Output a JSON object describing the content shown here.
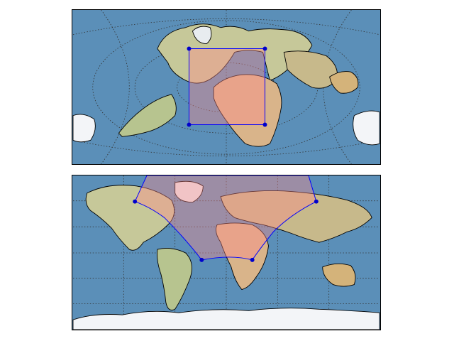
{
  "figure": {
    "panels": [
      {
        "id": "rotated-pole-map",
        "projection": "rotated-pole",
        "features": [
          "stock-image-background",
          "coastlines",
          "graticule-dotted",
          "projected-box-polygon",
          "corner-markers"
        ],
        "polygon": {
          "face_color": "#ff8a8a",
          "edge_color": "#0000ff",
          "alpha": 0.4
        }
      },
      {
        "id": "plate-carree-map",
        "projection": "plate-carree",
        "features": [
          "stock-image-background",
          "coastlines",
          "graticule-dotted",
          "geodesic-polygon",
          "corner-markers"
        ],
        "polygon": {
          "face_color": "#ff8a8a",
          "edge_color": "#0000ff",
          "alpha": 0.4
        }
      }
    ],
    "colors": {
      "ocean": "#5b8fb8",
      "land": "#c9c89b",
      "desert": "#d9b48a",
      "ice": "#f3f5f8",
      "marker": "#0000cc",
      "outline": "#0000ff"
    }
  }
}
